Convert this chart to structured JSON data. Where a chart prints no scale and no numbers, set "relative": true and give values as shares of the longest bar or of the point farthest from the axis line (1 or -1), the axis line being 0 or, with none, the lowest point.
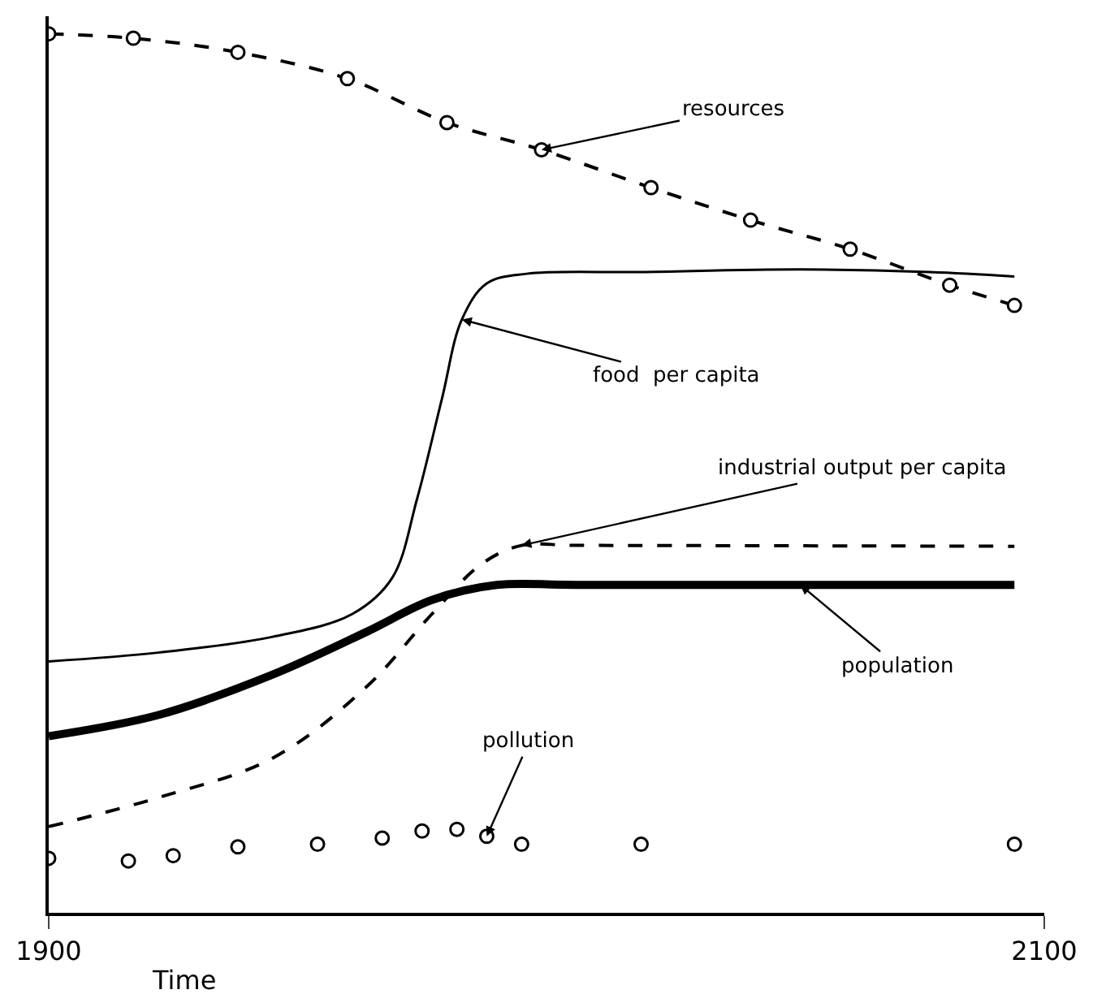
{
  "chart_data": {
    "type": "line",
    "relative": true,
    "xlabel": "Time",
    "xlim": [
      1900,
      2100
    ],
    "xticks": [
      1900,
      2100
    ],
    "series": [
      {
        "color": "#000000",
        "line_style": "dashed",
        "marker": "circle",
        "x": [
          1900,
          1917,
          1938,
          1960,
          1980,
          1999,
          2021,
          2041,
          2061,
          2081,
          2094
        ],
        "values": [
          1.0,
          0.995,
          0.979,
          0.949,
          0.899,
          0.868,
          0.825,
          0.788,
          0.755,
          0.714,
          0.691
        ]
      },
      {
        "color": "#000000",
        "line_style": "solid",
        "marker": "none",
        "x": [
          1900,
          1922,
          1945,
          1961,
          1969,
          1974,
          1979,
          1983,
          1988,
          1996,
          2019,
          2051,
          2077,
          2094
        ],
        "values": [
          0.286,
          0.296,
          0.314,
          0.34,
          0.381,
          0.471,
          0.585,
          0.675,
          0.716,
          0.727,
          0.729,
          0.732,
          0.729,
          0.724
        ]
      },
      {
        "color": "#000000",
        "line_style": "dashed",
        "marker": "none",
        "x": [
          1900,
          1922,
          1945,
          1964,
          1977,
          1987,
          1995,
          2006,
          2094
        ],
        "values": [
          0.098,
          0.131,
          0.176,
          0.258,
          0.34,
          0.397,
          0.418,
          0.418,
          0.417
        ]
      },
      {
        "color": "#000000",
        "line_style": "solid",
        "marker": "none",
        "x": [
          1900,
          1922,
          1945,
          1964,
          1977,
          1990,
          2006,
          2094
        ],
        "values": [
          0.201,
          0.225,
          0.271,
          0.32,
          0.356,
          0.373,
          0.373,
          0.373
        ]
      },
      {
        "type": "scatter",
        "color": "#000000",
        "marker": "circle",
        "x": [
          1900,
          1916,
          1925,
          1938,
          1954,
          1967,
          1975,
          1982,
          1988,
          1995,
          2019,
          2094
        ],
        "values": [
          0.062,
          0.059,
          0.065,
          0.075,
          0.078,
          0.085,
          0.093,
          0.095,
          0.087,
          0.078,
          0.078,
          0.078
        ]
      }
    ],
    "annotations": [
      {
        "text": "resources",
        "x": 1999,
        "y": 0.868
      },
      {
        "text": "food  per capita",
        "x": 1983,
        "y": 0.675
      },
      {
        "text": "industrial output per capita",
        "x": 1995,
        "y": 0.418
      },
      {
        "text": "population",
        "x": 2051,
        "y": 0.373
      },
      {
        "text": "pollution",
        "x": 1988,
        "y": 0.087
      }
    ]
  }
}
